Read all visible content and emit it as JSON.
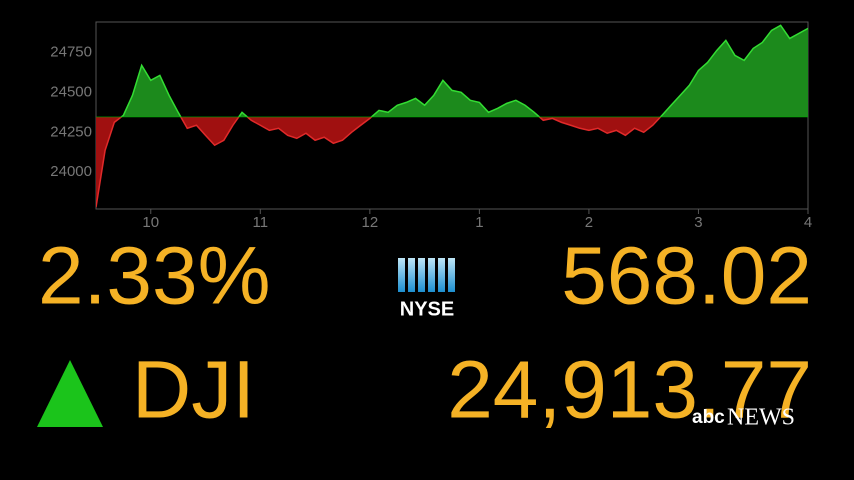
{
  "chart_data": {
    "type": "area",
    "x": [
      9.5,
      9.583,
      9.667,
      9.75,
      9.833,
      9.917,
      10,
      10.083,
      10.167,
      10.25,
      10.333,
      10.417,
      10.5,
      10.583,
      10.667,
      10.75,
      10.833,
      10.917,
      11,
      11.083,
      11.167,
      11.25,
      11.333,
      11.417,
      11.5,
      11.583,
      11.667,
      11.75,
      11.833,
      11.917,
      12,
      12.083,
      12.167,
      12.25,
      12.333,
      12.417,
      12.5,
      12.583,
      12.667,
      12.75,
      12.833,
      12.917,
      13,
      13.083,
      13.167,
      13.25,
      13.333,
      13.417,
      13.5,
      13.583,
      13.667,
      13.75,
      13.833,
      13.917,
      14,
      14.083,
      14.167,
      14.25,
      14.333,
      14.417,
      14.5,
      14.583,
      14.667,
      14.75,
      14.833,
      14.917,
      15,
      15.083,
      15.167,
      15.25,
      15.333,
      15.417,
      15.5,
      15.583,
      15.667,
      15.75,
      15.833,
      15.917,
      16
    ],
    "values": [
      23781,
      24137,
      24312,
      24356,
      24481,
      24669,
      24575,
      24606,
      24481,
      24375,
      24275,
      24294,
      24231,
      24169,
      24200,
      24294,
      24375,
      24325,
      24294,
      24262,
      24275,
      24231,
      24212,
      24244,
      24200,
      24219,
      24181,
      24200,
      24250,
      24294,
      24337,
      24387,
      24375,
      24419,
      24437,
      24462,
      24419,
      24481,
      24575,
      24512,
      24500,
      24450,
      24437,
      24375,
      24400,
      24431,
      24450,
      24419,
      24375,
      24325,
      24337,
      24312,
      24294,
      24275,
      24262,
      24275,
      24244,
      24262,
      24231,
      24275,
      24250,
      24294,
      24356,
      24419,
      24481,
      24544,
      24637,
      24687,
      24762,
      24825,
      24731,
      24700,
      24775,
      24812,
      24887,
      24919,
      24837,
      24869,
      24900
    ],
    "reference_line": 24345.75,
    "color_above": "#1c8a1c",
    "color_below": "#a01010",
    "xlim": [
      9.5,
      16
    ],
    "ylim": [
      23770,
      24940
    ],
    "xticks": [
      10,
      11,
      12,
      {
        "value": 13,
        "label": "1"
      },
      {
        "value": 14,
        "label": "2"
      },
      {
        "value": 15,
        "label": "3"
      },
      {
        "value": 16,
        "label": "4"
      }
    ],
    "yticks": [
      24000,
      24250,
      24500,
      24750
    ]
  },
  "ticker": {
    "change_pct": "2.33%",
    "exchange": "NYSE",
    "change_points": "568.02",
    "symbol": "DJI",
    "price": "24,913.77"
  },
  "brand": {
    "logo": "abc",
    "name": "NEWS"
  }
}
